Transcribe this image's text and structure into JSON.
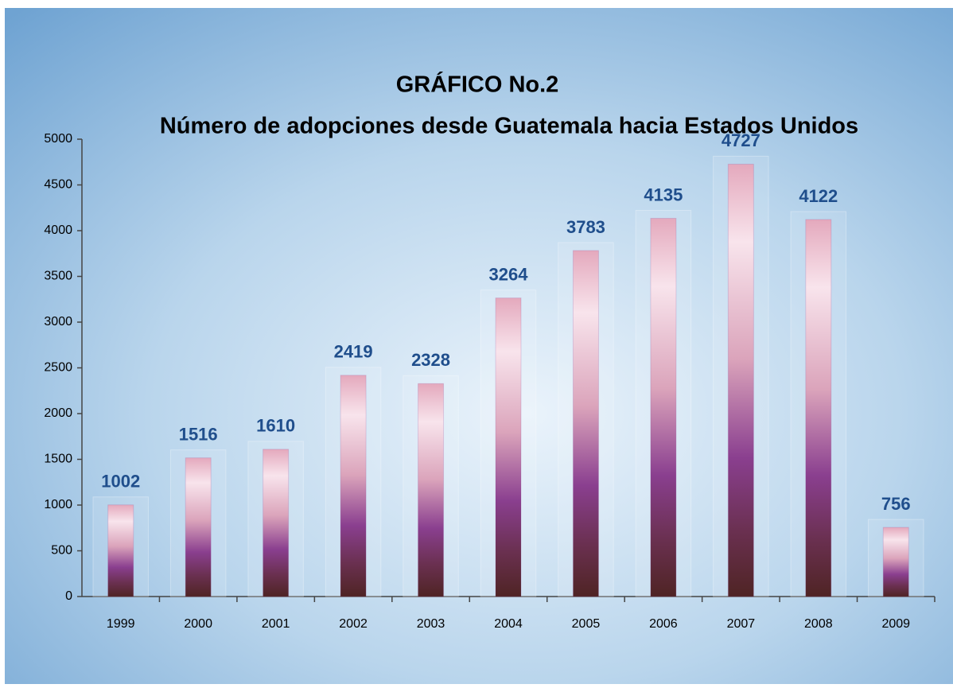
{
  "chart_data": {
    "type": "bar",
    "title": "GRÁFICO No.2",
    "subtitle": "Número de adopciones desde Guatemala hacia Estados Unidos",
    "categories": [
      "1999",
      "2000",
      "2001",
      "2002",
      "2003",
      "2004",
      "2005",
      "2006",
      "2007",
      "2008",
      "2009"
    ],
    "values": [
      1002,
      1516,
      1610,
      2419,
      2328,
      3264,
      3783,
      4135,
      4727,
      4122,
      756
    ],
    "color": "#8a3f8f",
    "label_color": "#1f4e8c",
    "ylim": [
      0,
      5000
    ],
    "yticks": [
      0,
      500,
      1000,
      1500,
      2000,
      2500,
      3000,
      3500,
      4000,
      4500,
      5000
    ],
    "grid": false
  }
}
